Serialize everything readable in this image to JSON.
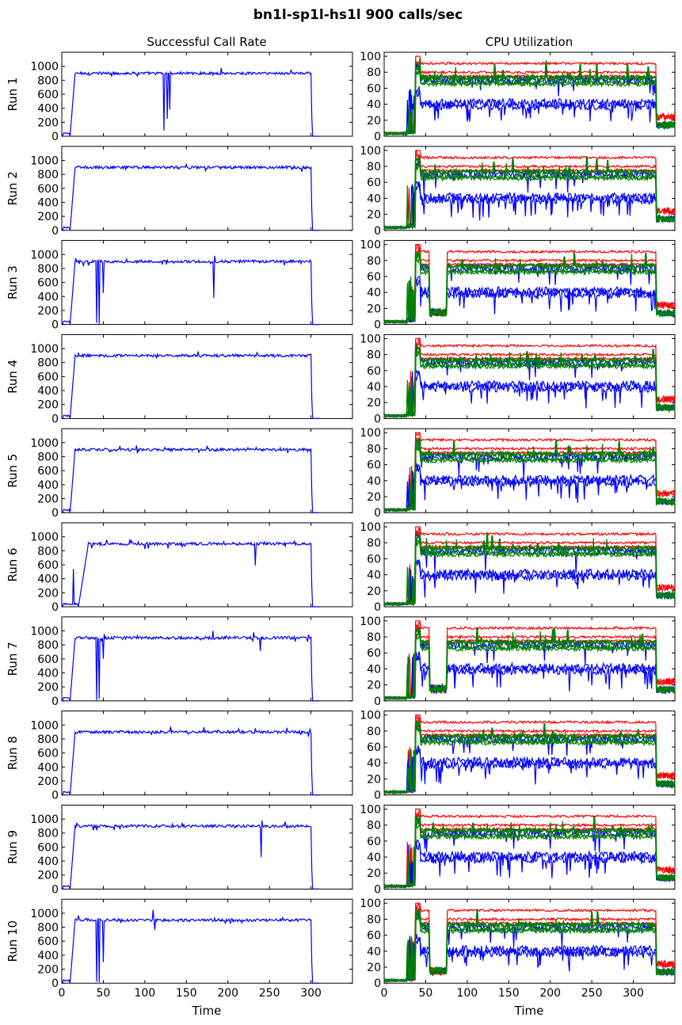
{
  "figure": {
    "title": "bn1l-sp1l-hs1l 900 calls/sec",
    "left_title": "Successful Call Rate",
    "right_title": "CPU Utilization",
    "left_xlabel": "Time",
    "right_xlabel": "Time",
    "row_labels": [
      "Run 1",
      "Run 2",
      "Run 3",
      "Run 4",
      "Run 5",
      "Run 6",
      "Run 7",
      "Run 8",
      "Run 9",
      "Run 10"
    ],
    "left_yticks": [
      "0",
      "200",
      "400",
      "600",
      "800",
      "1000"
    ],
    "right_yticks": [
      "0",
      "20",
      "40",
      "60",
      "80",
      "100"
    ],
    "left_xticks": [
      "0",
      "50",
      "100",
      "150",
      "200",
      "250",
      "300"
    ],
    "right_xticks": [
      "0",
      "50",
      "100",
      "150",
      "200",
      "250",
      "300"
    ]
  },
  "chart_data": [
    {
      "type": "line",
      "panel": "left",
      "title": "Successful Call Rate",
      "xlabel": "Time",
      "ylabel": "",
      "xlim": [
        0,
        350
      ],
      "ylim": [
        0,
        1200
      ],
      "color": "#0000ff",
      "plateau": 900,
      "runs": [
        {
          "run": "Run 1",
          "ramp": [
            10,
            16
          ],
          "end": 300,
          "dips": [
            [
              123,
              80
            ],
            [
              127,
              250
            ],
            [
              130,
              380
            ]
          ]
        },
        {
          "run": "Run 2",
          "ramp": [
            10,
            16
          ],
          "end": 300,
          "dips": []
        },
        {
          "run": "Run 3",
          "ramp": [
            10,
            16
          ],
          "end": 300,
          "dips": [
            [
              42,
              20
            ],
            [
              45,
              10
            ],
            [
              50,
              450
            ],
            [
              183,
              380
            ],
            [
              184,
              980
            ]
          ]
        },
        {
          "run": "Run 4",
          "ramp": [
            10,
            16
          ],
          "end": 300,
          "dips": []
        },
        {
          "run": "Run 5",
          "ramp": [
            10,
            16
          ],
          "end": 300,
          "dips": []
        },
        {
          "run": "Run 6",
          "ramp": [
            20,
            32
          ],
          "end": 300,
          "dips": [
            [
              14,
              540
            ],
            [
              16,
              50
            ],
            [
              233,
              590
            ]
          ]
        },
        {
          "run": "Run 7",
          "ramp": [
            10,
            16
          ],
          "end": 300,
          "dips": [
            [
              42,
              10
            ],
            [
              45,
              30
            ],
            [
              50,
              600
            ],
            [
              182,
              1000
            ],
            [
              239,
              710
            ]
          ]
        },
        {
          "run": "Run 8",
          "ramp": [
            10,
            16
          ],
          "end": 300,
          "dips": []
        },
        {
          "run": "Run 9",
          "ramp": [
            10,
            16
          ],
          "end": 300,
          "dips": [
            [
              240,
              460
            ],
            [
              241,
              980
            ]
          ]
        },
        {
          "run": "Run 10",
          "ramp": [
            10,
            16
          ],
          "end": 300,
          "dips": [
            [
              42,
              20
            ],
            [
              45,
              10
            ],
            [
              50,
              300
            ],
            [
              110,
              1050
            ],
            [
              112,
              760
            ]
          ]
        }
      ]
    },
    {
      "type": "line",
      "panel": "right",
      "title": "CPU Utilization",
      "xlabel": "Time",
      "ylabel": "",
      "xlim": [
        0,
        350
      ],
      "ylim": [
        0,
        105
      ],
      "series": [
        {
          "color": "#ff0000",
          "levels": [
            91,
            80,
            75
          ]
        },
        {
          "color": "#0000ff",
          "levels": [
            70,
            42,
            38
          ]
        },
        {
          "color": "#008000",
          "levels": [
            73,
            67,
            65
          ]
        }
      ],
      "start": 38,
      "end": 327,
      "gap_runs": [
        "Run 3",
        "Run 7",
        "Run 10"
      ],
      "gap_range": [
        55,
        75
      ]
    }
  ]
}
